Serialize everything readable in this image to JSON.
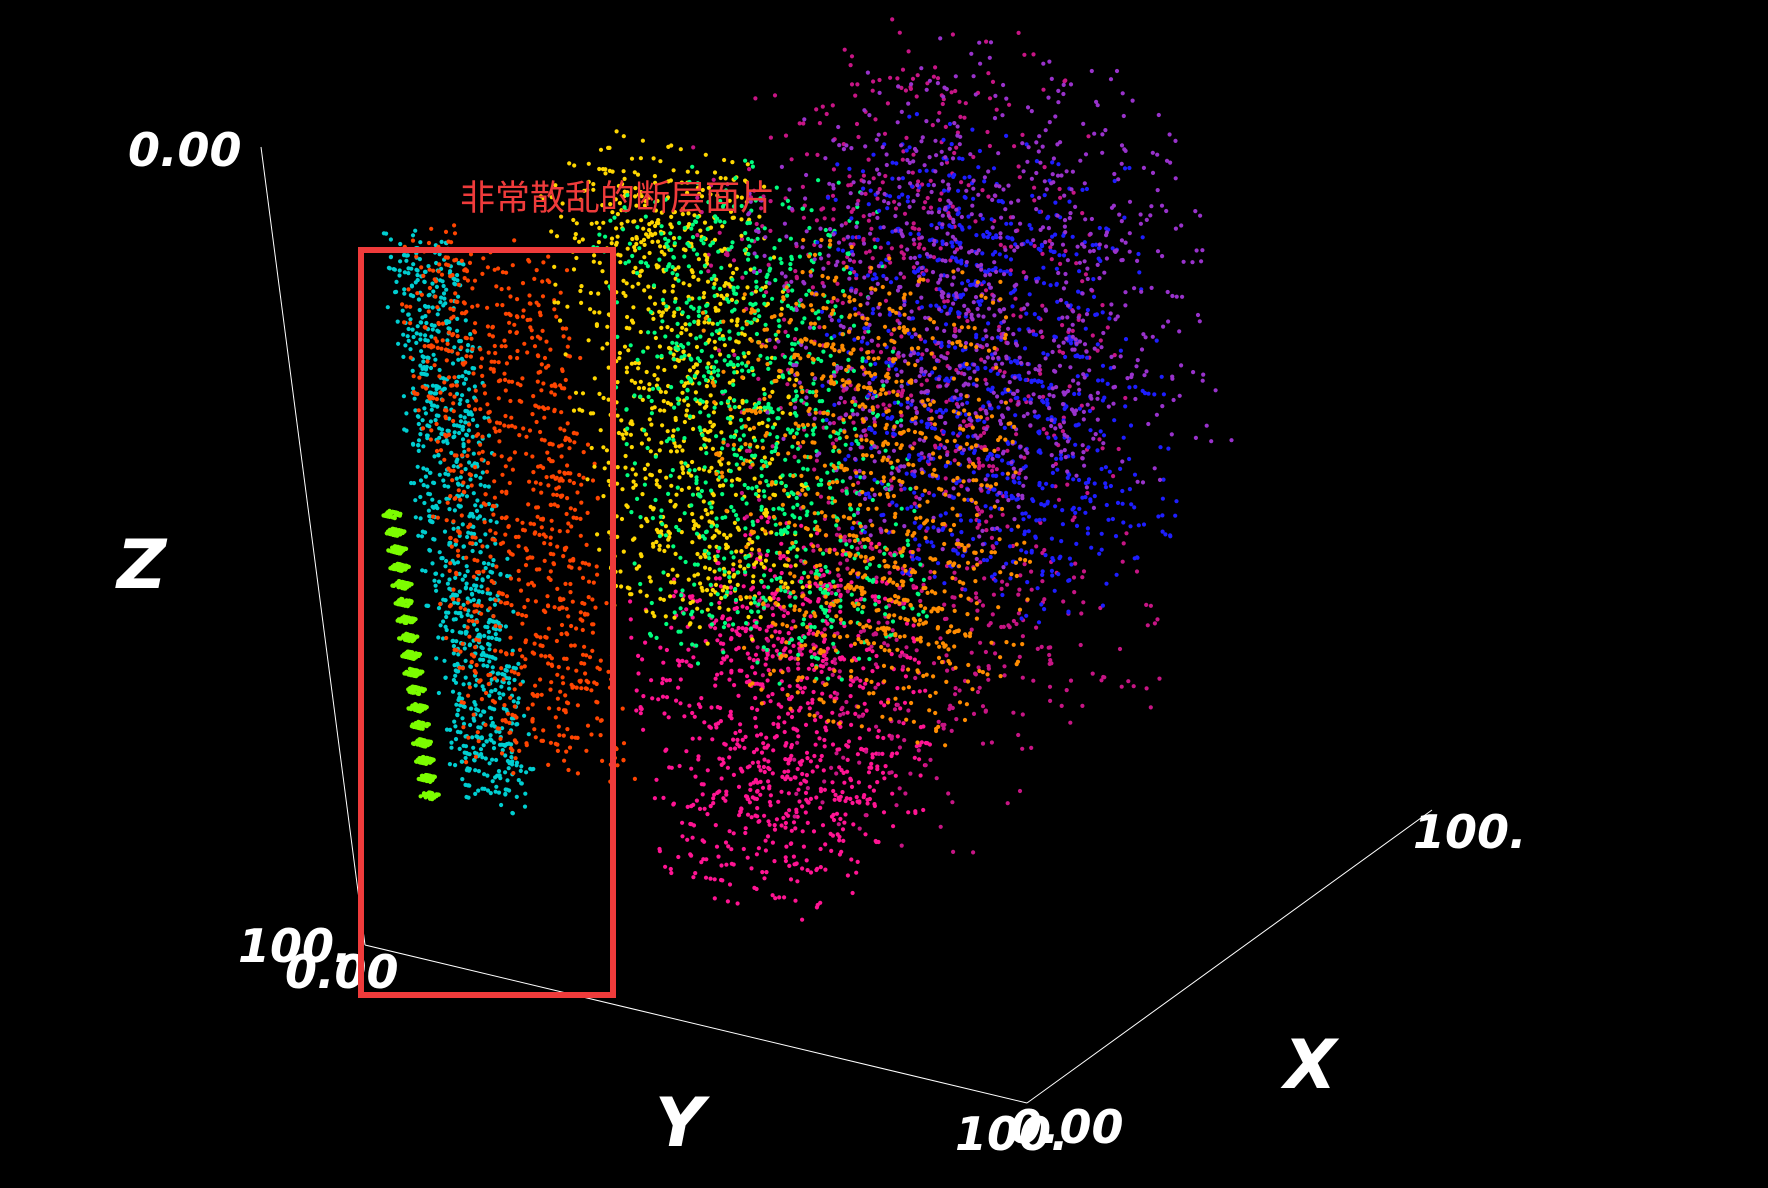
{
  "chart_data": {
    "type": "scatter",
    "dimensions": 3,
    "title": "",
    "xlabel": "X",
    "ylabel": "Y",
    "zlabel": "Z",
    "xlim": [
      0,
      100
    ],
    "ylim": [
      0,
      100
    ],
    "zlim": [
      0,
      100
    ],
    "tick_labels": {
      "z_top": "0.00",
      "origin_left": "100.",
      "origin_right": "0.00",
      "y_end_left": "100.",
      "y_end_right": "0.00",
      "x_end": "100."
    },
    "annotation": {
      "text": "非常散乱的断层面片",
      "color": "#ef3b3b"
    },
    "background": "#000000",
    "axis_line_color": "#ffffff",
    "point_colors": [
      "#ff1493",
      "#ff4500",
      "#7cfc00",
      "#00ced1",
      "#ffd700",
      "#1e1eff",
      "#c71585",
      "#00ff7f",
      "#9932cc",
      "#ff8c00"
    ],
    "series": [
      {
        "color": "#7cfc00",
        "x": [
          2,
          4
        ],
        "y": [
          10,
          12
        ],
        "z": [
          20,
          55
        ]
      },
      {
        "color": "#00ced1",
        "x": [
          3,
          8
        ],
        "y": [
          14,
          25
        ],
        "z": [
          20,
          90
        ]
      },
      {
        "color": "#ff4500",
        "x": [
          4,
          12
        ],
        "y": [
          15,
          38
        ],
        "z": [
          25,
          90
        ]
      },
      {
        "color": "#ff1493",
        "x": [
          20,
          60
        ],
        "y": [
          30,
          55
        ],
        "z": [
          5,
          40
        ]
      },
      {
        "color": "#c71585",
        "x": [
          30,
          95
        ],
        "y": [
          40,
          70
        ],
        "z": [
          10,
          95
        ]
      },
      {
        "color": "#ffd700",
        "x": [
          8,
          30
        ],
        "y": [
          35,
          60
        ],
        "z": [
          45,
          100
        ]
      },
      {
        "color": "#00ff7f",
        "x": [
          10,
          40
        ],
        "y": [
          40,
          70
        ],
        "z": [
          40,
          95
        ]
      },
      {
        "color": "#1e1eff",
        "x": [
          50,
          85
        ],
        "y": [
          45,
          80
        ],
        "z": [
          35,
          85
        ]
      },
      {
        "color": "#9932cc",
        "x": [
          20,
          80
        ],
        "y": [
          55,
          95
        ],
        "z": [
          55,
          100
        ]
      },
      {
        "color": "#ff8c00",
        "x": [
          60,
          95
        ],
        "y": [
          20,
          50
        ],
        "z": [
          10,
          60
        ]
      }
    ]
  }
}
